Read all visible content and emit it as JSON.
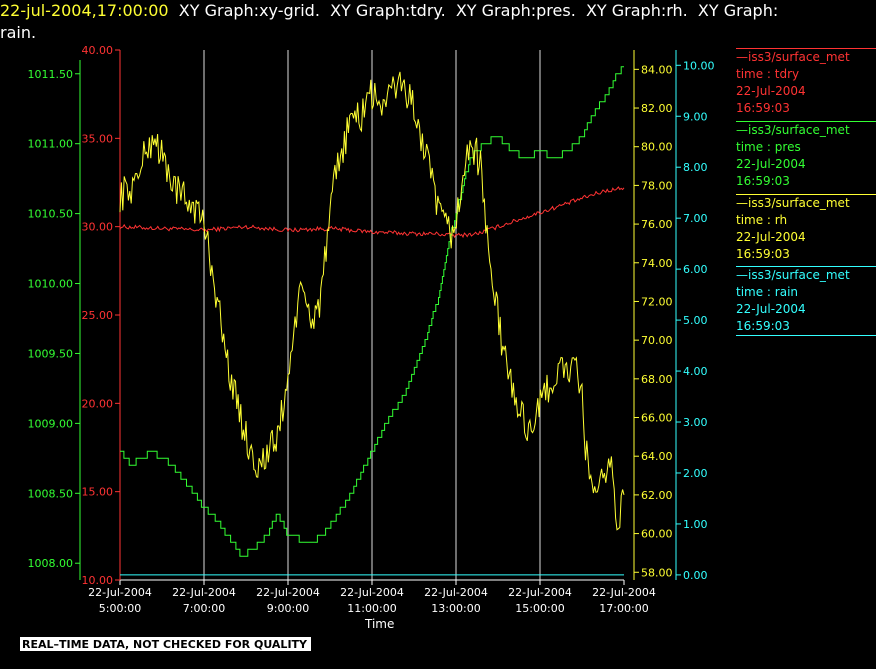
{
  "header": {
    "timestamp": "22-jul-2004,17:00:00",
    "title_rest": "  XY Graph:xy-grid.  XY Graph:tdry.  XY Graph:pres.  XY Graph:rh.  XY Graph:",
    "title_line2": "rain."
  },
  "legend": [
    {
      "name": "—iss3/surface_met",
      "var": "time : tdry",
      "date": "22-Jul-2004",
      "time": "16:59:03",
      "color": "#ff3333"
    },
    {
      "name": "—iss3/surface_met",
      "var": "time : pres",
      "date": "22-Jul-2004",
      "time": "16:59:03",
      "color": "#33ff33"
    },
    {
      "name": "—iss3/surface_met",
      "var": "time : rh",
      "date": "22-Jul-2004",
      "time": "16:59:03",
      "color": "#ffff33"
    },
    {
      "name": "—iss3/surface_met",
      "var": "time : rain",
      "date": "22-Jul-2004",
      "time": "16:59:03",
      "color": "#33ffff"
    }
  ],
  "footer": {
    "xlabel": "Time",
    "qc_notice": "REAL–TIME DATA, NOT CHECKED FOR QUALITY"
  },
  "chart_data": {
    "type": "line",
    "grid": "vertical lines at each 2-hour x tick",
    "x_range": [
      "2004-07-22 05:00:00",
      "2004-07-22 17:00:00"
    ],
    "x_ticks": [
      {
        "time": "05:00",
        "date": "22-Jul-2004",
        "label": "5:00:00"
      },
      {
        "time": "07:00",
        "date": "22-Jul-2004",
        "label": "7:00:00"
      },
      {
        "time": "09:00",
        "date": "22-Jul-2004",
        "label": "9:00:00"
      },
      {
        "time": "11:00",
        "date": "22-Jul-2004",
        "label": "11:00:00"
      },
      {
        "time": "13:00",
        "date": "22-Jul-2004",
        "label": "13:00:00"
      },
      {
        "time": "15:00",
        "date": "22-Jul-2004",
        "label": "15:00:00"
      },
      {
        "time": "17:00",
        "date": "22-Jul-2004",
        "label": "17:00:00"
      }
    ],
    "axes": {
      "pres": {
        "color": "#33ff33",
        "ylim": [
          1007.88,
          1011.67
        ],
        "ticks": [
          "1008.00",
          "1008.50",
          "1009.00",
          "1009.50",
          "1010.00",
          "1010.50",
          "1011.00",
          "1011.50"
        ]
      },
      "tdry": {
        "color": "#ff3333",
        "ylim": [
          10,
          40
        ],
        "ticks": [
          "10.00",
          "15.00",
          "20.00",
          "25.00",
          "30.00",
          "35.00",
          "40.00"
        ]
      },
      "rh": {
        "color": "#ffff33",
        "ylim": [
          57.6,
          85.0
        ],
        "ticks": [
          "58.00",
          "60.00",
          "62.00",
          "64.00",
          "66.00",
          "68.00",
          "70.00",
          "72.00",
          "74.00",
          "76.00",
          "78.00",
          "80.00",
          "82.00",
          "84.00"
        ]
      },
      "rain": {
        "color": "#33ffff",
        "ylim": [
          -0.1,
          10.3
        ],
        "ticks": [
          "0.00",
          "1.00",
          "2.00",
          "3.00",
          "4.00",
          "5.00",
          "6.00",
          "7.00",
          "8.00",
          "9.00",
          "10.00"
        ]
      }
    },
    "series": [
      {
        "name": "tdry",
        "axis": "tdry",
        "color": "#ff3333",
        "x": [
          "05:00",
          "06:00",
          "07:00",
          "08:00",
          "09:00",
          "10:00",
          "11:00",
          "12:00",
          "12:30",
          "13:00",
          "13:30",
          "14:00",
          "14:30",
          "15:00",
          "15:30",
          "16:00",
          "16:30",
          "17:00"
        ],
        "y": [
          30.0,
          29.9,
          29.8,
          30.0,
          29.8,
          29.9,
          29.7,
          29.6,
          29.6,
          29.5,
          29.6,
          30.0,
          30.4,
          30.8,
          31.2,
          31.6,
          32.0,
          32.2
        ]
      },
      {
        "name": "pres",
        "axis": "pres",
        "color": "#33ff33",
        "x": [
          "05:00",
          "05:15",
          "05:45",
          "06:15",
          "06:45",
          "07:00",
          "07:20",
          "07:40",
          "07:55",
          "08:10",
          "08:30",
          "08:45",
          "09:00",
          "09:30",
          "09:50",
          "10:05",
          "10:30",
          "10:50",
          "11:00",
          "11:20",
          "11:45",
          "12:10",
          "12:35",
          "12:50",
          "13:10",
          "13:20",
          "13:40",
          "14:00",
          "14:20",
          "14:40",
          "15:00",
          "15:20",
          "15:40",
          "16:00",
          "16:15",
          "16:35",
          "16:50",
          "17:00"
        ],
        "y": [
          1008.8,
          1008.7,
          1008.8,
          1008.7,
          1008.5,
          1008.4,
          1008.3,
          1008.15,
          1008.05,
          1008.1,
          1008.2,
          1008.35,
          1008.2,
          1008.15,
          1008.2,
          1008.3,
          1008.5,
          1008.7,
          1008.8,
          1009.0,
          1009.2,
          1009.5,
          1009.9,
          1010.3,
          1010.7,
          1010.9,
          1011.0,
          1011.05,
          1010.95,
          1010.9,
          1010.95,
          1010.9,
          1010.95,
          1011.05,
          1011.2,
          1011.35,
          1011.5,
          1011.55
        ]
      },
      {
        "name": "rh",
        "axis": "rh",
        "color": "#ffff33",
        "x": [
          "05:00",
          "05:20",
          "05:40",
          "05:50",
          "06:05",
          "06:25",
          "06:45",
          "07:00",
          "07:15",
          "07:30",
          "07:45",
          "08:00",
          "08:15",
          "08:30",
          "08:45",
          "09:00",
          "09:10",
          "09:20",
          "09:35",
          "09:45",
          "10:00",
          "10:05",
          "10:15",
          "10:30",
          "10:45",
          "10:55",
          "11:00",
          "11:20",
          "11:40",
          "12:00",
          "12:20",
          "12:40",
          "12:55",
          "13:10",
          "13:20",
          "13:35",
          "13:50",
          "14:05",
          "14:20",
          "14:40",
          "14:55",
          "15:10",
          "15:30",
          "15:50",
          "16:00",
          "16:05",
          "16:20",
          "16:40",
          "16:50",
          "17:00"
        ],
        "y": [
          77.5,
          78.0,
          80.0,
          80.5,
          79.0,
          77.5,
          77.0,
          76.0,
          73.0,
          69.5,
          67.0,
          65.0,
          63.5,
          64.0,
          65.0,
          68.0,
          71.0,
          72.5,
          71.0,
          72.0,
          76.0,
          78.0,
          79.5,
          81.5,
          81.5,
          83.0,
          82.5,
          82.3,
          83.5,
          82.0,
          79.0,
          76.0,
          75.5,
          78.0,
          80.5,
          79.0,
          73.5,
          70.0,
          67.5,
          65.5,
          66.0,
          67.5,
          68.5,
          68.5,
          67.0,
          64.5,
          61.5,
          64.0,
          60.5,
          62.0
        ]
      },
      {
        "name": "rain",
        "axis": "rain",
        "color": "#33ffff",
        "x": [
          "05:00",
          "17:00"
        ],
        "y": [
          0.0,
          0.0
        ]
      }
    ]
  }
}
